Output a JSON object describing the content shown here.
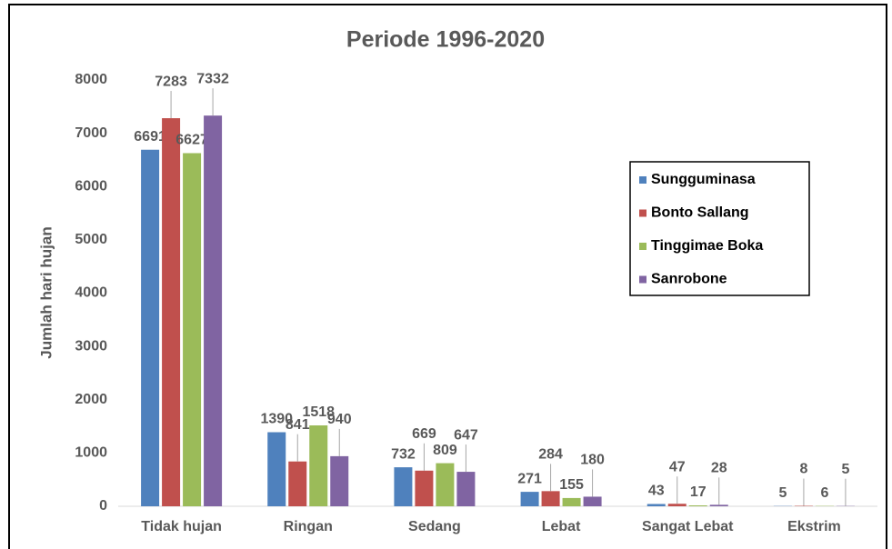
{
  "chart_data": {
    "type": "bar",
    "title": "Periode 1996-2020",
    "y_label": "Jumlah hari hujan",
    "categories": [
      "Tidak hujan",
      "Ringan",
      "Sedang",
      "Lebat",
      "Sangat Lebat",
      "Ekstrim"
    ],
    "series": [
      {
        "name": "Sungguminasa",
        "color": "#4f81bd",
        "values": [
          6691,
          1390,
          732,
          271,
          43,
          5
        ]
      },
      {
        "name": "Bonto Sallang",
        "color": "#c0504d",
        "values": [
          7283,
          841,
          669,
          284,
          47,
          8
        ]
      },
      {
        "name": "Tinggimae Boka",
        "color": "#9bbb59",
        "values": [
          6627,
          1518,
          809,
          155,
          17,
          6
        ]
      },
      {
        "name": "Sanrobone",
        "color": "#8064a2",
        "values": [
          7332,
          940,
          647,
          180,
          28,
          5
        ]
      }
    ],
    "ylim": [
      0,
      8000
    ],
    "yticks": [
      0,
      1000,
      2000,
      3000,
      4000,
      5000,
      6000,
      7000,
      8000
    ],
    "grid": false,
    "legend": "right"
  }
}
